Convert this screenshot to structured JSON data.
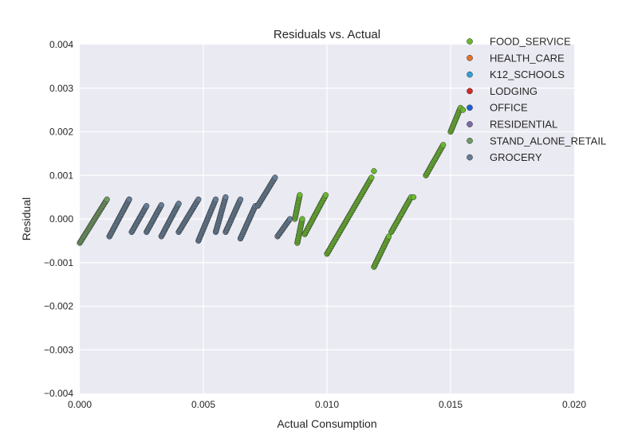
{
  "chart_data": {
    "type": "scatter",
    "title": "Residuals vs. Actual",
    "xlabel": "Actual Consumption",
    "ylabel": "Residual",
    "xlim": [
      0.0,
      0.02
    ],
    "ylim": [
      -0.004,
      0.004
    ],
    "xticks": [
      "0.000",
      "0.005",
      "0.010",
      "0.015",
      "0.020"
    ],
    "yticks": [
      "0.004",
      "0.003",
      "0.002",
      "0.001",
      "0.000",
      "−0.001",
      "−0.002",
      "−0.003",
      "−0.004"
    ],
    "grid": true,
    "legend_position": "top-right",
    "series": [
      {
        "name": "FOOD_SERVICE",
        "color": "#6ab82f",
        "segments": [
          [
            [
              0.0087,
              0.0
            ],
            [
              0.0089,
              0.00055
            ]
          ],
          [
            [
              0.0088,
              -0.00055
            ],
            [
              0.009,
              0.0
            ]
          ],
          [
            [
              0.0091,
              -0.00035
            ],
            [
              0.00995,
              0.00055
            ]
          ],
          [
            [
              0.01,
              -0.0008
            ],
            [
              0.0118,
              0.00095
            ]
          ],
          [
            [
              0.0119,
              -0.0011
            ],
            [
              0.0125,
              -0.0004
            ]
          ],
          [
            [
              0.0126,
              -0.0003
            ],
            [
              0.0134,
              0.0005
            ]
          ],
          [
            [
              0.014,
              0.001
            ],
            [
              0.0147,
              0.0017
            ]
          ],
          [
            [
              0.015,
              0.002
            ],
            [
              0.0154,
              0.00255
            ]
          ]
        ],
        "points": [
          [
            0.0119,
            0.0011
          ],
          [
            0.0155,
            0.0025
          ],
          [
            0.0135,
            0.0005
          ]
        ]
      },
      {
        "name": "HEALTH_CARE",
        "color": "#e8702a",
        "segments": [],
        "points": [
          [
            0.004,
            0.00035
          ]
        ]
      },
      {
        "name": "K12_SCHOOLS",
        "color": "#2fa1d8",
        "segments": [],
        "points": []
      },
      {
        "name": "LODGING",
        "color": "#d62728",
        "segments": [],
        "points": []
      },
      {
        "name": "OFFICE",
        "color": "#1f5fd6",
        "segments": [],
        "points": []
      },
      {
        "name": "RESIDENTIAL",
        "color": "#7a68a6",
        "segments": [],
        "points": []
      },
      {
        "name": "STAND_ALONE_RETAIL",
        "color": "#6f9a62",
        "segments": [
          [
            [
              0.0,
              -0.00055
            ],
            [
              0.0011,
              0.00045
            ]
          ],
          [
            [
              0.0012,
              -0.0004
            ],
            [
              0.002,
              0.00045
            ]
          ]
        ],
        "points": []
      },
      {
        "name": "GROCERY",
        "color": "#667d95",
        "segments": [
          [
            [
              0.0012,
              -0.0004
            ],
            [
              0.002,
              0.00045
            ]
          ],
          [
            [
              0.0021,
              -0.0003
            ],
            [
              0.0027,
              0.0003
            ]
          ],
          [
            [
              0.0027,
              -0.0003
            ],
            [
              0.0033,
              0.00032
            ]
          ],
          [
            [
              0.0033,
              -0.0004
            ],
            [
              0.004,
              0.00035
            ]
          ],
          [
            [
              0.004,
              -0.0003
            ],
            [
              0.0048,
              0.00045
            ]
          ],
          [
            [
              0.0048,
              -0.0005
            ],
            [
              0.0055,
              0.00045
            ]
          ],
          [
            [
              0.0055,
              -0.0003
            ],
            [
              0.0059,
              0.0005
            ]
          ],
          [
            [
              0.0059,
              -0.0003
            ],
            [
              0.0065,
              0.00045
            ]
          ],
          [
            [
              0.0065,
              -0.00045
            ],
            [
              0.0071,
              0.0003
            ]
          ],
          [
            [
              0.0072,
              0.0003
            ],
            [
              0.0079,
              0.00095
            ]
          ],
          [
            [
              0.008,
              -0.0004
            ],
            [
              0.0085,
              0.0
            ]
          ]
        ],
        "points": []
      }
    ]
  }
}
